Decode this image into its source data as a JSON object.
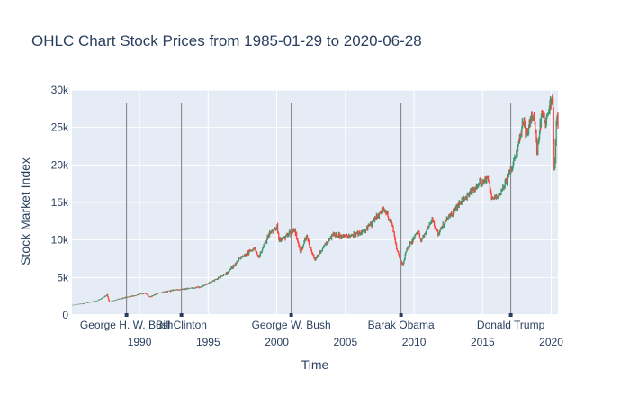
{
  "chart_data": {
    "type": "ohlc",
    "title": "OHLC Chart Stock Prices from 1985-01-29 to 2020-06-28",
    "xlabel": "Time",
    "ylabel": "Stock Market Index",
    "xlim": [
      "1985-01-29",
      "2020-06-28"
    ],
    "ylim": [
      0,
      30000
    ],
    "x_ticks": [
      "1990",
      "1995",
      "2000",
      "2005",
      "2010",
      "2015",
      "2020"
    ],
    "y_ticks": [
      "0",
      "5k",
      "10k",
      "15k",
      "20k",
      "25k",
      "30k"
    ],
    "grid": true,
    "colors": {
      "increasing": "#3D9970",
      "decreasing": "#FF4136",
      "background": "#e5ecf6",
      "annotation_line": "#7f7f7f"
    },
    "annotations": [
      {
        "date": "1989-01-20",
        "label": "George H. W. Bush"
      },
      {
        "date": "1993-01-20",
        "label": "Bill Clinton"
      },
      {
        "date": "2001-01-20",
        "label": "George W. Bush"
      },
      {
        "date": "2009-01-20",
        "label": "Barak Obama"
      },
      {
        "date": "2017-01-20",
        "label": "Donald Trump"
      }
    ],
    "series_points": [
      [
        "1985-01-29",
        1290
      ],
      [
        "1986-01-01",
        1550
      ],
      [
        "1987-01-01",
        1950
      ],
      [
        "1987-08-25",
        2700
      ],
      [
        "1987-10-19",
        1750
      ],
      [
        "1988-06-01",
        2100
      ],
      [
        "1989-06-01",
        2500
      ],
      [
        "1990-06-01",
        2900
      ],
      [
        "1990-10-01",
        2400
      ],
      [
        "1991-06-01",
        2950
      ],
      [
        "1992-06-01",
        3300
      ],
      [
        "1993-06-01",
        3500
      ],
      [
        "1994-06-01",
        3750
      ],
      [
        "1995-06-01",
        4550
      ],
      [
        "1996-06-01",
        5650
      ],
      [
        "1997-06-01",
        7700
      ],
      [
        "1998-06-01",
        8900
      ],
      [
        "1998-09-01",
        7600
      ],
      [
        "1999-06-01",
        10700
      ],
      [
        "2000-01-14",
        11700
      ],
      [
        "2000-03-01",
        10000
      ],
      [
        "2001-05-01",
        11300
      ],
      [
        "2001-09-21",
        8300
      ],
      [
        "2002-03-01",
        10600
      ],
      [
        "2002-10-09",
        7300
      ],
      [
        "2003-06-01",
        9100
      ],
      [
        "2004-02-01",
        10600
      ],
      [
        "2005-06-01",
        10500
      ],
      [
        "2006-06-01",
        11200
      ],
      [
        "2007-10-09",
        14100
      ],
      [
        "2008-06-01",
        12000
      ],
      [
        "2008-10-10",
        8500
      ],
      [
        "2009-03-09",
        6600
      ],
      [
        "2009-06-01",
        8500
      ],
      [
        "2010-04-26",
        11200
      ],
      [
        "2010-07-01",
        9700
      ],
      [
        "2011-04-29",
        12800
      ],
      [
        "2011-10-03",
        10700
      ],
      [
        "2012-06-01",
        12800
      ],
      [
        "2013-06-01",
        15100
      ],
      [
        "2014-06-01",
        16800
      ],
      [
        "2015-05-19",
        18300
      ],
      [
        "2015-08-25",
        15700
      ],
      [
        "2016-02-11",
        15600
      ],
      [
        "2016-11-08",
        18300
      ],
      [
        "2017-06-01",
        21300
      ],
      [
        "2018-01-26",
        26600
      ],
      [
        "2018-02-08",
        23900
      ],
      [
        "2018-10-03",
        26800
      ],
      [
        "2018-12-24",
        21700
      ],
      [
        "2019-04-23",
        26700
      ],
      [
        "2019-08-01",
        25600
      ],
      [
        "2020-02-12",
        29500
      ],
      [
        "2020-03-23",
        18300
      ],
      [
        "2020-06-08",
        27600
      ],
      [
        "2020-06-28",
        25000
      ]
    ]
  }
}
